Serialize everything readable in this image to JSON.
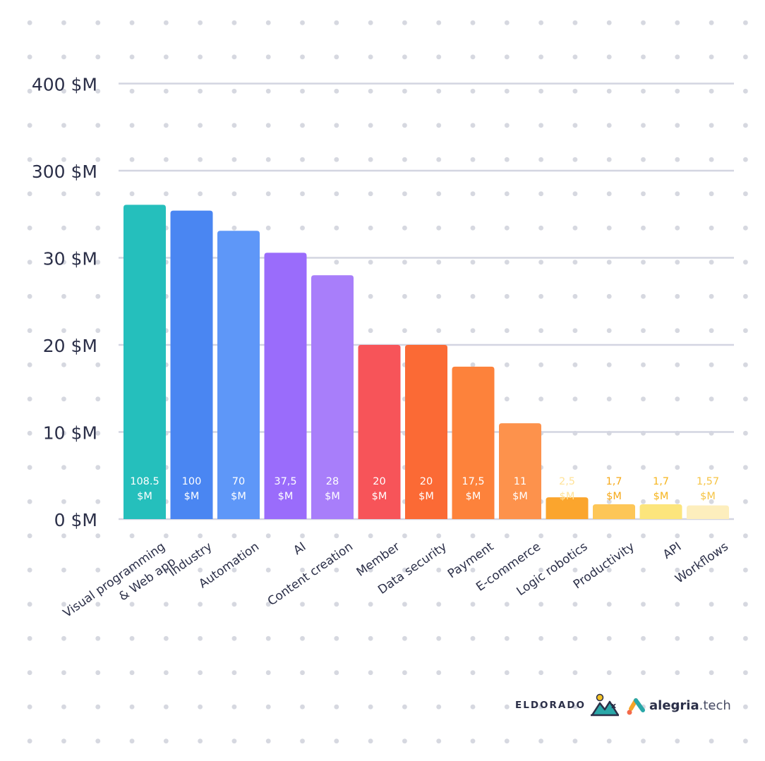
{
  "chart_data": {
    "type": "bar",
    "categories": [
      [
        "Visual programming",
        "& Web app"
      ],
      [
        "Industry"
      ],
      [
        "Automation"
      ],
      [
        "AI"
      ],
      [
        "Content creation"
      ],
      [
        "Member"
      ],
      [
        "Data security"
      ],
      [
        "Payment"
      ],
      [
        "E-commerce"
      ],
      [
        "Logic robotics"
      ],
      [
        "Productivity"
      ],
      [
        "API"
      ],
      [
        "Workflows"
      ]
    ],
    "values": [
      108.5,
      100,
      70,
      37.5,
      28,
      20,
      20,
      17.5,
      11,
      2.5,
      1.7,
      1.7,
      1.57
    ],
    "value_labels": [
      [
        "108.5",
        "$M"
      ],
      [
        "100",
        "$M"
      ],
      [
        "70",
        "$M"
      ],
      [
        "37,5",
        "$M"
      ],
      [
        "28",
        "$M"
      ],
      [
        "20",
        "$M"
      ],
      [
        "20",
        "$M"
      ],
      [
        "17,5",
        "$M"
      ],
      [
        "11",
        "$M"
      ],
      [
        "2,5",
        "$M"
      ],
      [
        "1,7",
        "$M"
      ],
      [
        "1,7",
        "$M"
      ],
      [
        "1,57",
        "$M"
      ]
    ],
    "yticks": [
      "0 $M",
      "10 $M",
      "20 $M",
      "30 $M",
      "300 $M",
      "400 $M"
    ],
    "ytick_values": [
      0,
      10,
      20,
      30,
      300,
      400
    ],
    "y_scale": "piecewise (non-linear above 30 $M)",
    "grid": true,
    "colors": [
      "#25bfbc",
      "#4a86f2",
      "#5e97f8",
      "#9a6cfb",
      "#a87efa",
      "#f75459",
      "#fb6a35",
      "#fd823b",
      "#fd924c",
      "#fba52d",
      "#fdc657",
      "#fce57c",
      "#fdeebd"
    ],
    "label_colors": [
      "#ffffff",
      "#ffffff",
      "#ffffff",
      "#ffffff",
      "#ffffff",
      "#ffffff",
      "#ffffff",
      "#ffffff",
      "#ffffff",
      "#ffe39a",
      "#f6a91a",
      "#f6b51e",
      "#f6c445"
    ],
    "title": "",
    "xlabel": "",
    "ylabel": ""
  },
  "logos": {
    "eldorado": "ELDORADO",
    "separator": "x",
    "alegria_name": "alegria",
    "alegria_tld": ".tech"
  }
}
